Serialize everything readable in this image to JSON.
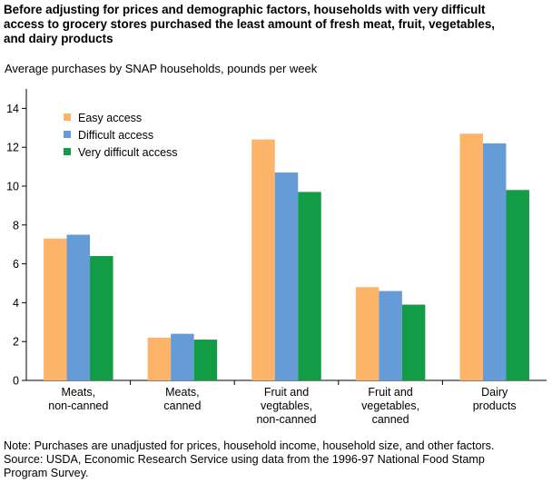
{
  "title_lines": [
    "Before adjusting for prices and demographic factors, households with very difficult",
    "access to grocery stores purchased the least amount of fresh meat, fruit, vegetables,",
    "and dairy products"
  ],
  "subtitle": "Average purchases by SNAP households, pounds per week",
  "note_lines": [
    "Note: Purchases are unadjusted for prices, household income, household size, and other factors.",
    "Source: USDA, Economic  Research Service using data from the 1996-97 National Food Stamp",
    "Program Survey."
  ],
  "chart_data": {
    "type": "bar",
    "title": "Before adjusting for prices and demographic factors, households with very difficult access to grocery stores purchased the least amount of fresh meat, fruit, vegetables, and dairy products",
    "ylabel": "Average purchases by SNAP households, pounds per week",
    "xlabel": "",
    "ylim": [
      0,
      15
    ],
    "yticks": [
      0,
      2,
      4,
      6,
      8,
      10,
      12,
      14
    ],
    "grid": false,
    "legend_position": "top-right",
    "categories": [
      [
        "Meats,",
        "non-canned"
      ],
      [
        "Meats,",
        "canned"
      ],
      [
        "Fruit and",
        "vegtables,",
        "non-canned"
      ],
      [
        "Fruit and",
        "vegetables,",
        "canned"
      ],
      [
        "Dairy",
        "products"
      ]
    ],
    "series": [
      {
        "name": "Easy access",
        "color": "#FDB469",
        "values": [
          7.3,
          2.2,
          12.4,
          4.8,
          12.7
        ]
      },
      {
        "name": "Difficult access",
        "color": "#659BD6",
        "values": [
          7.5,
          2.4,
          10.7,
          4.6,
          12.2
        ]
      },
      {
        "name": "Very difficult access",
        "color": "#139C46",
        "values": [
          6.4,
          2.1,
          9.7,
          3.9,
          9.8
        ]
      }
    ]
  }
}
